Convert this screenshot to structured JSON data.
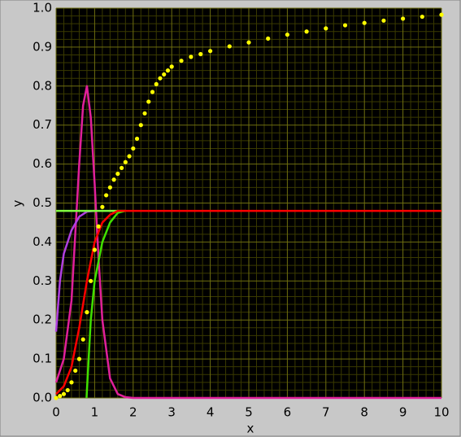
{
  "chart_data": {
    "type": "line",
    "xlabel": "x",
    "ylabel": "y",
    "xlim": [
      0,
      10
    ],
    "ylim": [
      0,
      1
    ],
    "xticks": [
      0,
      1,
      2,
      3,
      4,
      5,
      6,
      7,
      8,
      9,
      10
    ],
    "yticks": [
      {
        "value": 0,
        "label": "0.0"
      },
      {
        "value": 0.1,
        "label": "0.1"
      },
      {
        "value": 0.2,
        "label": "0.2"
      },
      {
        "value": 0.3,
        "label": "0.3"
      },
      {
        "value": 0.4,
        "label": "0.4"
      },
      {
        "value": 0.5,
        "label": "0.5"
      },
      {
        "value": 0.6,
        "label": "0.6"
      },
      {
        "value": 0.7,
        "label": "0.7"
      },
      {
        "value": 0.8,
        "label": "0.8"
      },
      {
        "value": 0.9,
        "label": "0.9"
      },
      {
        "value": 1,
        "label": "1.0"
      }
    ],
    "grid": true,
    "series": [
      {
        "color": "#e0209a",
        "style": "line",
        "x": [
          0,
          0.2,
          0.4,
          0.6,
          0.7,
          0.8,
          0.9,
          1.0,
          1.1,
          1.2,
          1.4,
          1.6,
          1.8,
          2,
          10
        ],
        "values": [
          0.04,
          0.1,
          0.25,
          0.6,
          0.75,
          0.8,
          0.72,
          0.55,
          0.36,
          0.2,
          0.05,
          0.01,
          0.002,
          0,
          0
        ]
      },
      {
        "color": "#b040e0",
        "style": "line",
        "x": [
          0,
          0.1,
          0.2,
          0.4,
          0.6,
          0.8,
          1.0
        ],
        "values": [
          0.17,
          0.3,
          0.37,
          0.43,
          0.465,
          0.478,
          0.48
        ]
      },
      {
        "color": "#80ff40",
        "style": "line",
        "x": [
          0,
          1.8
        ],
        "values": [
          0.48,
          0.48
        ]
      },
      {
        "color": "#40e000",
        "style": "line",
        "x": [
          0.79,
          0.8,
          0.9,
          1.0,
          1.2,
          1.4,
          1.6,
          1.8
        ],
        "values": [
          0,
          0.02,
          0.2,
          0.3,
          0.4,
          0.45,
          0.475,
          0.48
        ]
      },
      {
        "color": "#ff0000",
        "style": "line",
        "x": [
          0,
          0.2,
          0.4,
          0.6,
          0.8,
          1.0,
          1.2,
          1.4,
          1.6,
          10
        ],
        "values": [
          0.01,
          0.03,
          0.08,
          0.18,
          0.3,
          0.4,
          0.45,
          0.47,
          0.48,
          0.48
        ]
      },
      {
        "color": "#ffff00",
        "style": "dots",
        "x": [
          0,
          0.1,
          0.2,
          0.3,
          0.4,
          0.5,
          0.6,
          0.7,
          0.8,
          0.9,
          1.0,
          1.1,
          1.2,
          1.3,
          1.4,
          1.5,
          1.6,
          1.7,
          1.8,
          1.9,
          2.0,
          2.1,
          2.2,
          2.3,
          2.4,
          2.5,
          2.6,
          2.7,
          2.8,
          2.9,
          3.0,
          3.25,
          3.5,
          3.75,
          4,
          4.5,
          5,
          5.5,
          6,
          6.5,
          7,
          7.5,
          8,
          8.5,
          9,
          9.5,
          10
        ],
        "values": [
          0.0,
          0.005,
          0.01,
          0.02,
          0.04,
          0.07,
          0.1,
          0.15,
          0.22,
          0.3,
          0.38,
          0.44,
          0.49,
          0.52,
          0.54,
          0.56,
          0.575,
          0.59,
          0.605,
          0.62,
          0.64,
          0.665,
          0.7,
          0.73,
          0.76,
          0.785,
          0.805,
          0.82,
          0.83,
          0.84,
          0.85,
          0.865,
          0.875,
          0.882,
          0.89,
          0.902,
          0.912,
          0.922,
          0.932,
          0.94,
          0.948,
          0.956,
          0.962,
          0.968,
          0.973,
          0.978,
          0.983
        ]
      }
    ]
  }
}
